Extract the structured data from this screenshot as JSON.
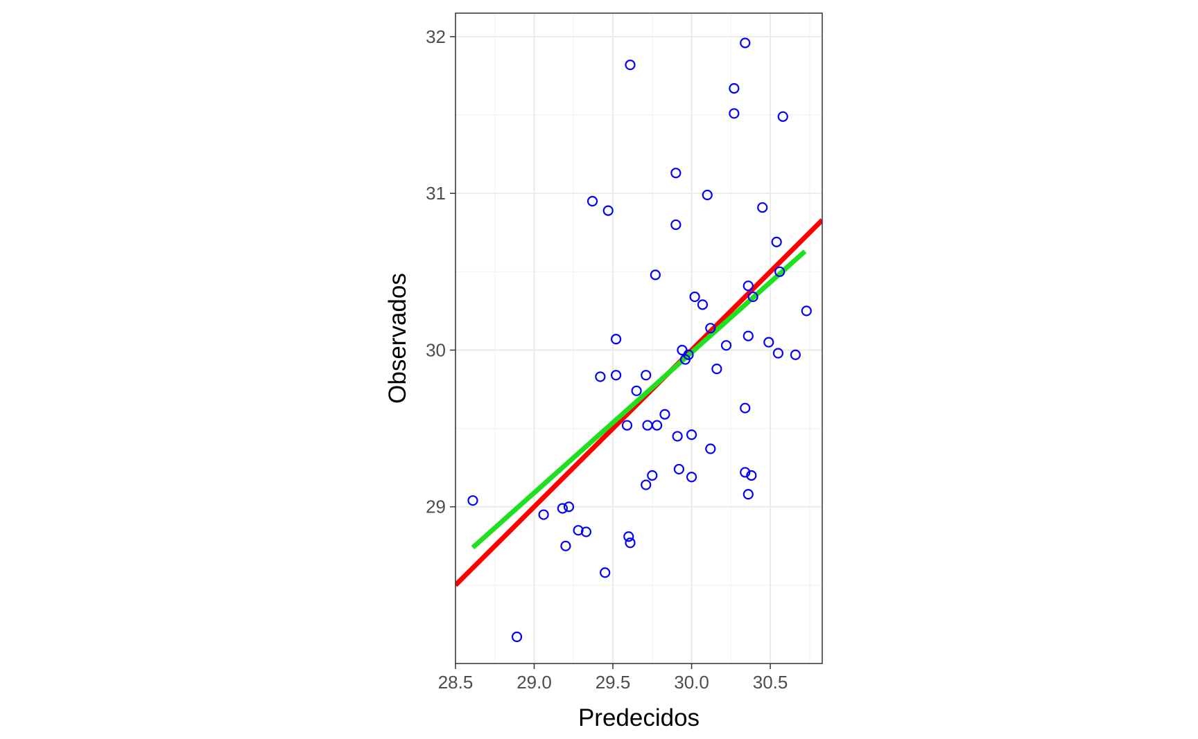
{
  "chart_data": {
    "type": "scatter",
    "title": "",
    "xlabel": "Predecidos",
    "ylabel": "Observados",
    "xlim": [
      28.5,
      30.83
    ],
    "ylim": [
      28.0,
      32.15
    ],
    "x_ticks": [
      28.5,
      29.0,
      29.5,
      30.0,
      30.5
    ],
    "x_tick_labels": [
      "28.5",
      "29.0",
      "29.5",
      "30.0",
      "30.5"
    ],
    "y_ticks": [
      29,
      30,
      31,
      32
    ],
    "y_tick_labels": [
      "29",
      "30",
      "31",
      "32"
    ],
    "grid": true,
    "legend": "none",
    "colors": {
      "points": "#0000ff",
      "identity_line": "#ff0000",
      "fit_line": "#1fe01f",
      "grid": "#ebebeb",
      "panel_border": "#333333"
    },
    "points": [
      [
        28.61,
        29.04
      ],
      [
        28.89,
        28.17
      ],
      [
        29.06,
        28.95
      ],
      [
        29.18,
        28.99
      ],
      [
        29.2,
        28.75
      ],
      [
        29.22,
        29.0
      ],
      [
        29.28,
        28.85
      ],
      [
        29.33,
        28.84
      ],
      [
        29.37,
        30.95
      ],
      [
        29.42,
        29.83
      ],
      [
        29.45,
        28.58
      ],
      [
        29.47,
        30.89
      ],
      [
        29.52,
        30.07
      ],
      [
        29.52,
        29.84
      ],
      [
        29.59,
        29.52
      ],
      [
        29.6,
        28.81
      ],
      [
        29.61,
        28.77
      ],
      [
        29.61,
        31.82
      ],
      [
        29.65,
        29.74
      ],
      [
        29.71,
        29.84
      ],
      [
        29.71,
        29.14
      ],
      [
        29.72,
        29.52
      ],
      [
        29.75,
        29.2
      ],
      [
        29.77,
        30.48
      ],
      [
        29.78,
        29.52
      ],
      [
        29.83,
        29.59
      ],
      [
        29.9,
        31.13
      ],
      [
        29.9,
        30.8
      ],
      [
        29.91,
        29.45
      ],
      [
        29.92,
        29.24
      ],
      [
        29.94,
        30.0
      ],
      [
        29.96,
        29.94
      ],
      [
        29.98,
        29.97
      ],
      [
        30.0,
        29.46
      ],
      [
        30.0,
        29.19
      ],
      [
        30.02,
        30.34
      ],
      [
        30.07,
        30.29
      ],
      [
        30.1,
        30.99
      ],
      [
        30.12,
        29.37
      ],
      [
        30.12,
        30.14
      ],
      [
        30.16,
        29.88
      ],
      [
        30.22,
        30.03
      ],
      [
        30.27,
        31.67
      ],
      [
        30.27,
        31.51
      ],
      [
        30.34,
        31.96
      ],
      [
        30.34,
        29.63
      ],
      [
        30.34,
        29.22
      ],
      [
        30.36,
        30.41
      ],
      [
        30.36,
        30.09
      ],
      [
        30.36,
        29.08
      ],
      [
        30.38,
        29.2
      ],
      [
        30.39,
        30.34
      ],
      [
        30.45,
        30.91
      ],
      [
        30.49,
        30.05
      ],
      [
        30.54,
        30.69
      ],
      [
        30.55,
        29.98
      ],
      [
        30.56,
        30.5
      ],
      [
        30.58,
        31.49
      ],
      [
        30.66,
        29.97
      ],
      [
        30.73,
        30.25
      ]
    ],
    "lines": [
      {
        "kind": "identity",
        "x": [
          28.5,
          30.83
        ],
        "y": [
          28.5,
          30.83
        ]
      },
      {
        "kind": "fit",
        "x": [
          28.61,
          30.72
        ],
        "y": [
          28.74,
          30.63
        ]
      }
    ]
  }
}
